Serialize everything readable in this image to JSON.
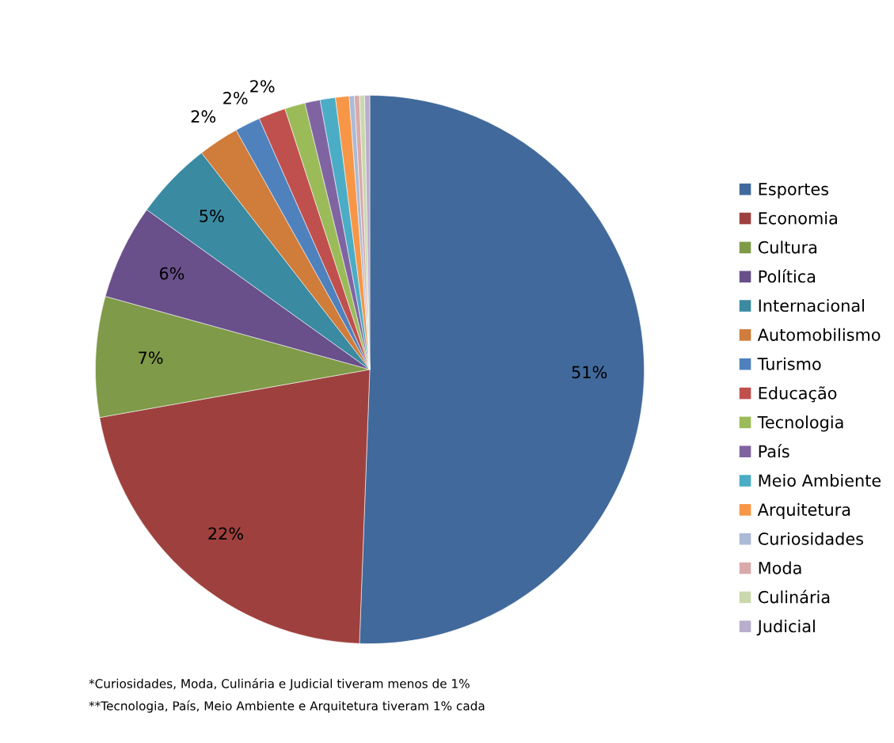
{
  "chart_data": {
    "type": "pie",
    "categories": [
      "Esportes",
      "Economia",
      "Cultura",
      "Política",
      "Internacional",
      "Automobilismo",
      "Turismo",
      "Educação",
      "Tecnologia",
      "País",
      "Meio Ambiente",
      "Arquitetura",
      "Curiosidades",
      "Moda",
      "Culinária",
      "Judicial"
    ],
    "values": [
      50.6,
      21.6,
      7.1,
      5.6,
      4.6,
      2.4,
      1.5,
      1.6,
      1.2,
      0.9,
      0.9,
      0.8,
      0.3,
      0.3,
      0.3,
      0.3
    ],
    "value_labels": [
      "51%",
      "22%",
      "7%",
      "6%",
      "5%",
      "2%",
      "2%",
      "2%",
      null,
      null,
      null,
      null,
      null,
      null,
      null,
      null
    ],
    "colors": [
      "#41699b",
      "#9e413e",
      "#7f9a48",
      "#69508a",
      "#3a8aa2",
      "#d07c3a",
      "#4f81bd",
      "#c0504d",
      "#9bbb59",
      "#8064a2",
      "#4bacc6",
      "#f79646",
      "#aabad7",
      "#d9aaa9",
      "#c9d9ad",
      "#b9aecb"
    ],
    "legend": "right",
    "annotations": [
      "*Curiosidades, Moda, Culinária e Judicial tiveram menos de 1%",
      "**Tecnologia, País, Meio Ambiente e Arquitetura tiveram 1% cada"
    ]
  }
}
